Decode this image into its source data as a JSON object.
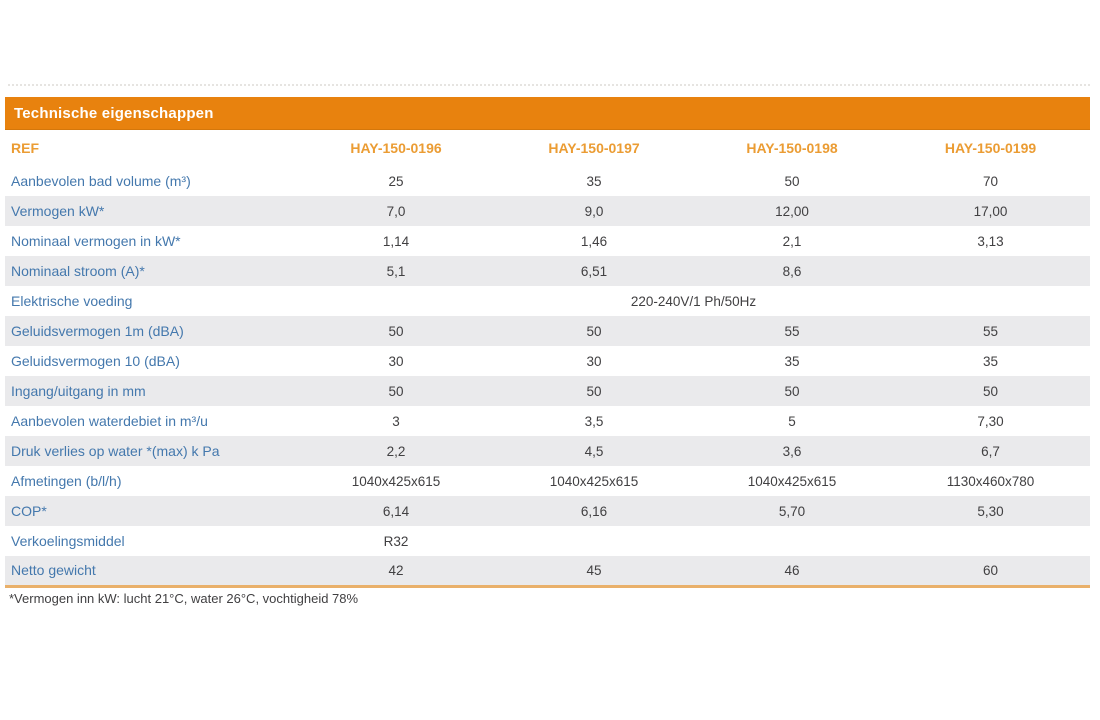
{
  "table": {
    "title": "Technische eigenschappen",
    "ref_label": "REF",
    "columns": [
      "HAY-150-0196",
      "HAY-150-0197",
      "HAY-150-0198",
      "HAY-150-0199"
    ],
    "rows": [
      {
        "label": "Aanbevolen bad volume (m³)",
        "values": [
          "25",
          "35",
          "50",
          "70"
        ]
      },
      {
        "label": "Vermogen kW*",
        "values": [
          "7,0",
          "9,0",
          "12,00",
          "17,00"
        ]
      },
      {
        "label": "Nominaal vermogen in kW*",
        "values": [
          "1,14",
          "1,46",
          "2,1",
          "3,13"
        ]
      },
      {
        "label": "Nominaal stroom (A)*",
        "values": [
          "5,1",
          "6,51",
          "8,6",
          ""
        ]
      },
      {
        "label": "Elektrische voeding",
        "span_value": "220-240V/1 Ph/50Hz"
      },
      {
        "label": "Geluidsvermogen 1m (dBA)",
        "values": [
          "50",
          "50",
          "55",
          "55"
        ]
      },
      {
        "label": "Geluidsvermogen 10 (dBA)",
        "values": [
          "30",
          "30",
          "35",
          "35"
        ]
      },
      {
        "label": "Ingang/uitgang in mm",
        "values": [
          "50",
          "50",
          "50",
          "50"
        ]
      },
      {
        "label": "Aanbevolen waterdebiet in m³/u",
        "values": [
          "3",
          "3,5",
          "5",
          "7,30"
        ]
      },
      {
        "label": "Druk verlies op water *(max) k Pa",
        "values": [
          "2,2",
          "4,5",
          "3,6",
          "6,7"
        ]
      },
      {
        "label": "Afmetingen (b/l/h)",
        "values": [
          "1040x425x615",
          "1040x425x615",
          "1040x425x615",
          "1130x460x780"
        ]
      },
      {
        "label": "COP*",
        "values": [
          "6,14",
          "6,16",
          "5,70",
          "5,30"
        ]
      },
      {
        "label": "Verkoelingsmiddel",
        "values": [
          "R32",
          "",
          "",
          ""
        ]
      },
      {
        "label": "Netto gewicht",
        "values": [
          "42",
          "45",
          "46",
          "60"
        ]
      }
    ],
    "footnote": "*Vermogen inn kW: lucht 21°C, water 26°C, vochtigheid 78%"
  },
  "colors": {
    "header_bar_orange": "#e8820e",
    "column_header_orange": "#eb9c33",
    "row_label_blue": "#4478ad",
    "value_gray": "#414042",
    "stripe_gray": "#eaeaec",
    "bottom_border_tan": "#e9b06a"
  }
}
